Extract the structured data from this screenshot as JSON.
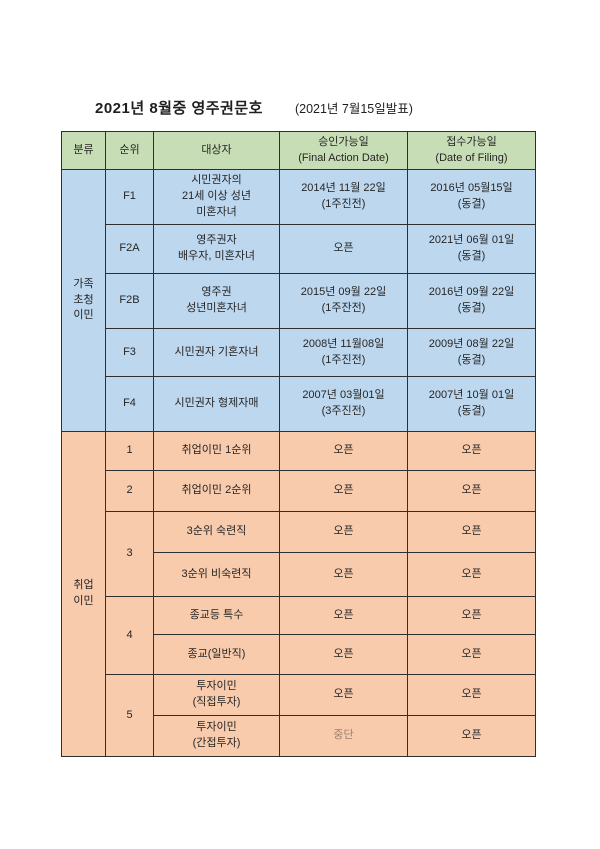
{
  "page": {
    "title": "2021년 8월중 영주권문호",
    "subtitle": "(2021년 7월15일발표)"
  },
  "colors": {
    "header_bg": "#c7ddb5",
    "family_bg": "#bdd7ee",
    "employment_bg": "#f8cbad",
    "border": "#2f2f2f",
    "suspended_text": "#9a8170"
  },
  "table": {
    "headers": [
      "분류",
      "순위",
      "대상자",
      "승인가능일\n(Final Action Date)",
      "접수가능일\n(Date of Filing)"
    ],
    "family": {
      "category": "가족\n초청\n이민",
      "rows": [
        {
          "rank": "F1",
          "target": "시민권자의\n21세 이상 성년\n미혼자녀",
          "final_action": "2014년 11월 22일\n(1주진전)",
          "filing": "2016년 05월15일\n(동결)"
        },
        {
          "rank": "F2A",
          "target": "영주권자\n배우자, 미혼자녀",
          "final_action": "오픈",
          "filing": "2021년 06월 01일\n(동결)"
        },
        {
          "rank": "F2B",
          "target": "영주권\n성년미혼자녀",
          "final_action": "2015년 09월 22일\n(1주잔전)",
          "filing": "2016년 09월 22일\n(동결)"
        },
        {
          "rank": "F3",
          "target": "시민권자 기혼자녀",
          "final_action": "2008년 11월08일\n(1주진전)",
          "filing": "2009년 08월 22일\n(동결)"
        },
        {
          "rank": "F4",
          "target": "시민권자 형제자매",
          "final_action": "2007년 03월01일\n(3주진전)",
          "filing": "2007년 10월 01일\n(동결)"
        }
      ]
    },
    "employment": {
      "category": "취업\n이민",
      "rows": [
        {
          "rank": "1",
          "target": "취업이민 1순위",
          "final_action": "오픈",
          "filing": "오픈"
        },
        {
          "rank": "2",
          "target": "취업이민 2순위",
          "final_action": "오픈",
          "filing": "오픈"
        },
        {
          "rank": "3",
          "target": "3순위 숙련직",
          "final_action": "오픈",
          "filing": "오픈"
        },
        {
          "rank": "",
          "target": "3순위 비숙련직",
          "final_action": "오픈",
          "filing": "오픈"
        },
        {
          "rank": "4",
          "target": "종교등 특수",
          "final_action": "오픈",
          "filing": "오픈"
        },
        {
          "rank": "",
          "target": "종교(일반직)",
          "final_action": "오픈",
          "filing": "오픈"
        },
        {
          "rank": "5",
          "target": "투자이민\n(직접투자)",
          "final_action": "오픈",
          "filing": "오픈"
        },
        {
          "rank": "",
          "target": "투자이민\n(간접투자)",
          "final_action": "중단",
          "filing": "오픈"
        }
      ]
    }
  }
}
